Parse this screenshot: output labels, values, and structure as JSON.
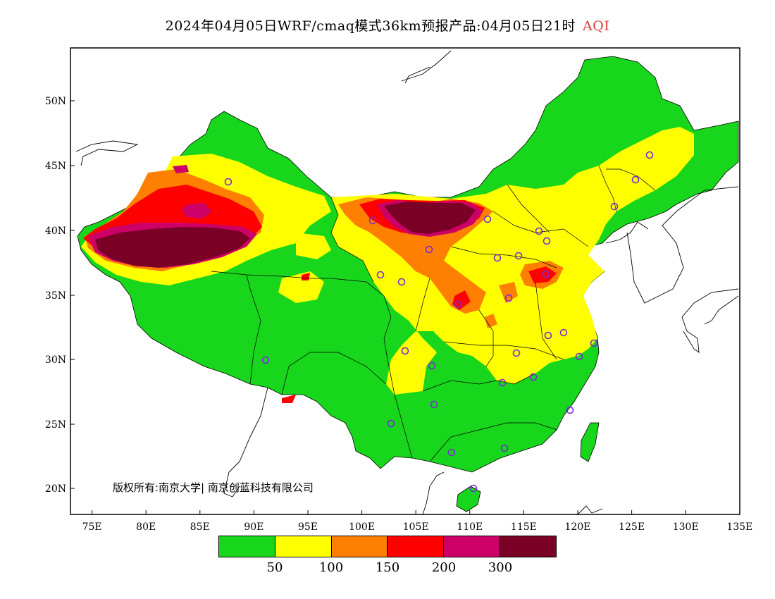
{
  "title": {
    "main": "2024年04月05日WRF/cmaq模式36km预报产品:04月05日21时",
    "variable": "AQI"
  },
  "map": {
    "lon_range": [
      73,
      135
    ],
    "lat_range": [
      18,
      54
    ],
    "x_ticks": [
      "75E",
      "80E",
      "85E",
      "90E",
      "95E",
      "100E",
      "105E",
      "110E",
      "115E",
      "120E",
      "125E",
      "130E",
      "135E"
    ],
    "y_ticks": [
      "50N",
      "45N",
      "40N",
      "35N",
      "30N",
      "25N",
      "20N"
    ]
  },
  "copyright": "版权所有:南京大学| 南京创蓝科技有限公司",
  "legend": {
    "colors": [
      "#17d61b",
      "#ffff00",
      "#ff7f00",
      "#ff0000",
      "#cc0066",
      "#7a0026"
    ],
    "labels": [
      "50",
      "100",
      "150",
      "200",
      "300"
    ]
  }
}
